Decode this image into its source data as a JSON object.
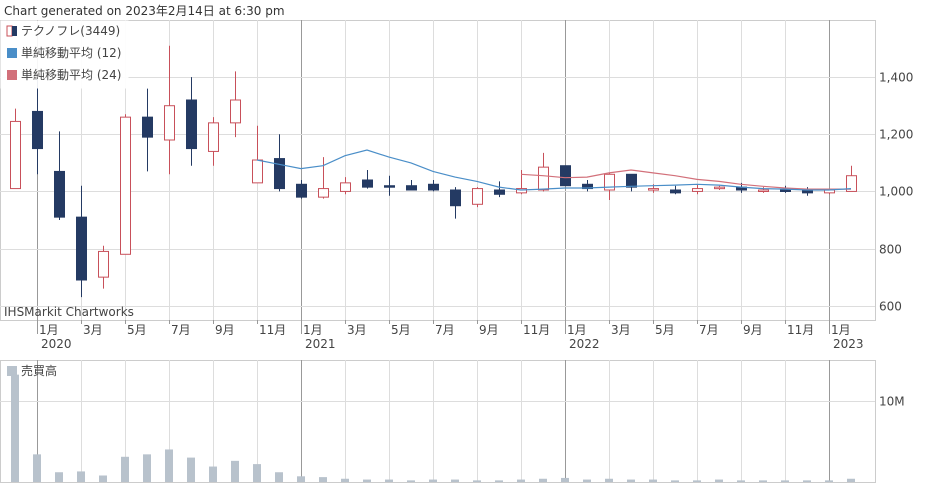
{
  "header": {
    "generated": "Chart generated on 2023年2月14日 at 6:30 pm"
  },
  "watermark": "IHSMarkit Chartworks",
  "colors": {
    "up": "#c8505a",
    "down": "#243a63",
    "sma12": "#4a8ec8",
    "sma24": "#d2707a",
    "volume": "#b8c2cc",
    "grid": "#dddddd",
    "major_grid": "#999999"
  },
  "chart_data": [
    {
      "type": "candlestick",
      "legend": [
        {
          "label": "テクノフレ(3449)",
          "icon": "candle-legend-icon"
        },
        {
          "label": "単純移動平均 (12)",
          "color": "#4a8ec8"
        },
        {
          "label": "単純移動平均 (24)",
          "color": "#d2707a"
        }
      ],
      "legend_position": "top-left",
      "ylim": [
        550,
        1600
      ],
      "yticks": [
        600,
        800,
        1000,
        1200,
        1400
      ],
      "ytick_labels": [
        "600",
        "800",
        "1,000",
        "1,200",
        "1,400"
      ],
      "xtick_labels": [
        {
          "i": 1,
          "label": "1月",
          "year": "2020",
          "major": true
        },
        {
          "i": 3,
          "label": "3月"
        },
        {
          "i": 5,
          "label": "5月"
        },
        {
          "i": 7,
          "label": "7月"
        },
        {
          "i": 9,
          "label": "9月"
        },
        {
          "i": 11,
          "label": "11月"
        },
        {
          "i": 13,
          "label": "1月",
          "year": "2021",
          "major": true
        },
        {
          "i": 15,
          "label": "3月"
        },
        {
          "i": 17,
          "label": "5月"
        },
        {
          "i": 19,
          "label": "7月"
        },
        {
          "i": 21,
          "label": "9月"
        },
        {
          "i": 23,
          "label": "11月"
        },
        {
          "i": 25,
          "label": "1月",
          "year": "2022",
          "major": true
        },
        {
          "i": 27,
          "label": "3月"
        },
        {
          "i": 29,
          "label": "5月"
        },
        {
          "i": 31,
          "label": "7月"
        },
        {
          "i": 33,
          "label": "9月"
        },
        {
          "i": 35,
          "label": "11月"
        },
        {
          "i": 37,
          "label": "1月",
          "year": "2023",
          "major": true
        }
      ],
      "candles": [
        {
          "o": 1010,
          "h": 1290,
          "l": 1010,
          "c": 1245
        },
        {
          "o": 1280,
          "h": 1400,
          "l": 1060,
          "c": 1150
        },
        {
          "o": 1070,
          "h": 1210,
          "l": 900,
          "c": 910
        },
        {
          "o": 910,
          "h": 1020,
          "l": 630,
          "c": 690
        },
        {
          "o": 700,
          "h": 810,
          "l": 660,
          "c": 790
        },
        {
          "o": 780,
          "h": 1270,
          "l": 780,
          "c": 1260
        },
        {
          "o": 1260,
          "h": 1360,
          "l": 1070,
          "c": 1190
        },
        {
          "o": 1180,
          "h": 1510,
          "l": 1060,
          "c": 1300
        },
        {
          "o": 1320,
          "h": 1400,
          "l": 1090,
          "c": 1150
        },
        {
          "o": 1140,
          "h": 1260,
          "l": 1090,
          "c": 1240
        },
        {
          "o": 1240,
          "h": 1420,
          "l": 1190,
          "c": 1320
        },
        {
          "o": 1030,
          "h": 1230,
          "l": 1030,
          "c": 1110
        },
        {
          "o": 1115,
          "h": 1200,
          "l": 1000,
          "c": 1010
        },
        {
          "o": 1025,
          "h": 1040,
          "l": 975,
          "c": 980
        },
        {
          "o": 980,
          "h": 1120,
          "l": 975,
          "c": 1010
        },
        {
          "o": 1000,
          "h": 1050,
          "l": 990,
          "c": 1030
        },
        {
          "o": 1040,
          "h": 1075,
          "l": 1010,
          "c": 1015
        },
        {
          "o": 1020,
          "h": 1055,
          "l": 985,
          "c": 1015
        },
        {
          "o": 1020,
          "h": 1040,
          "l": 1005,
          "c": 1005
        },
        {
          "o": 1025,
          "h": 1040,
          "l": 1000,
          "c": 1005
        },
        {
          "o": 1005,
          "h": 1015,
          "l": 905,
          "c": 950
        },
        {
          "o": 955,
          "h": 1015,
          "l": 945,
          "c": 1010
        },
        {
          "o": 1005,
          "h": 1035,
          "l": 980,
          "c": 990
        },
        {
          "o": 995,
          "h": 1075,
          "l": 990,
          "c": 1010
        },
        {
          "o": 1005,
          "h": 1135,
          "l": 1000,
          "c": 1085
        },
        {
          "o": 1090,
          "h": 1090,
          "l": 1020,
          "c": 1020
        },
        {
          "o": 1025,
          "h": 1040,
          "l": 1000,
          "c": 1010
        },
        {
          "o": 1005,
          "h": 1065,
          "l": 970,
          "c": 1060
        },
        {
          "o": 1060,
          "h": 1060,
          "l": 1000,
          "c": 1015
        },
        {
          "o": 1005,
          "h": 1025,
          "l": 995,
          "c": 1010
        },
        {
          "o": 1005,
          "h": 1020,
          "l": 990,
          "c": 995
        },
        {
          "o": 1000,
          "h": 1025,
          "l": 990,
          "c": 1010
        },
        {
          "o": 1010,
          "h": 1020,
          "l": 1005,
          "c": 1015
        },
        {
          "o": 1015,
          "h": 1030,
          "l": 995,
          "c": 1005
        },
        {
          "o": 1005,
          "h": 1015,
          "l": 995,
          "c": 1005
        },
        {
          "o": 1005,
          "h": 1020,
          "l": 995,
          "c": 1000
        },
        {
          "o": 1005,
          "h": 1015,
          "l": 985,
          "c": 995
        },
        {
          "o": 995,
          "h": 1010,
          "l": 990,
          "c": 1005
        },
        {
          "o": 1000,
          "h": 1090,
          "l": 1000,
          "c": 1055
        }
      ],
      "sma12": [
        {
          "i": 11,
          "v": 1110
        },
        {
          "i": 12,
          "v": 1095
        },
        {
          "i": 13,
          "v": 1080
        },
        {
          "i": 14,
          "v": 1090
        },
        {
          "i": 15,
          "v": 1125
        },
        {
          "i": 16,
          "v": 1145
        },
        {
          "i": 17,
          "v": 1120
        },
        {
          "i": 18,
          "v": 1100
        },
        {
          "i": 19,
          "v": 1070
        },
        {
          "i": 20,
          "v": 1050
        },
        {
          "i": 21,
          "v": 1035
        },
        {
          "i": 22,
          "v": 1015
        },
        {
          "i": 23,
          "v": 1005
        },
        {
          "i": 24,
          "v": 1008
        },
        {
          "i": 25,
          "v": 1012
        },
        {
          "i": 26,
          "v": 1012
        },
        {
          "i": 27,
          "v": 1015
        },
        {
          "i": 28,
          "v": 1018
        },
        {
          "i": 29,
          "v": 1020
        },
        {
          "i": 30,
          "v": 1022
        },
        {
          "i": 31,
          "v": 1025
        },
        {
          "i": 32,
          "v": 1022
        },
        {
          "i": 33,
          "v": 1015
        },
        {
          "i": 34,
          "v": 1010
        },
        {
          "i": 35,
          "v": 1008
        },
        {
          "i": 36,
          "v": 1005
        },
        {
          "i": 37,
          "v": 1005
        },
        {
          "i": 38,
          "v": 1010
        }
      ],
      "sma24": [
        {
          "i": 23,
          "v": 1060
        },
        {
          "i": 24,
          "v": 1055
        },
        {
          "i": 25,
          "v": 1048
        },
        {
          "i": 26,
          "v": 1050
        },
        {
          "i": 27,
          "v": 1065
        },
        {
          "i": 28,
          "v": 1075
        },
        {
          "i": 29,
          "v": 1065
        },
        {
          "i": 30,
          "v": 1055
        },
        {
          "i": 31,
          "v": 1042
        },
        {
          "i": 32,
          "v": 1035
        },
        {
          "i": 33,
          "v": 1025
        },
        {
          "i": 34,
          "v": 1018
        },
        {
          "i": 35,
          "v": 1012
        },
        {
          "i": 36,
          "v": 1008
        },
        {
          "i": 37,
          "v": 1008
        },
        {
          "i": 38,
          "v": 1008
        }
      ]
    },
    {
      "type": "bar",
      "legend": [
        {
          "label": "売買高",
          "color": "#b8c2cc"
        }
      ],
      "ylim": [
        0,
        15
      ],
      "yticks": [
        10
      ],
      "ytick_labels": [
        "10M"
      ],
      "unit": "M",
      "values": [
        13.2,
        3.4,
        1.2,
        1.3,
        0.8,
        3.1,
        3.4,
        4.0,
        3.0,
        1.9,
        2.6,
        2.2,
        1.2,
        0.7,
        0.6,
        0.4,
        0.3,
        0.3,
        0.2,
        0.3,
        0.3,
        0.2,
        0.2,
        0.3,
        0.4,
        0.5,
        0.3,
        0.4,
        0.3,
        0.3,
        0.2,
        0.2,
        0.3,
        0.2,
        0.2,
        0.2,
        0.2,
        0.2,
        0.4
      ]
    }
  ]
}
